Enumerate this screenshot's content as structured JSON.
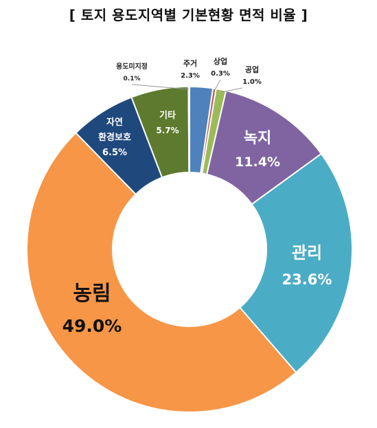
{
  "chart_data": {
    "type": "pie",
    "title": "[ 토지 용도지역별 기본현황 면적 비율 ]",
    "categories": [
      "주거",
      "상업",
      "공업",
      "녹지",
      "관리",
      "농림",
      "자연환경보호",
      "기타",
      "용도미지정"
    ],
    "values": [
      2.3,
      0.3,
      1.0,
      11.4,
      23.6,
      49.0,
      6.5,
      5.7,
      0.1
    ],
    "value_labels": [
      "2.3%",
      "0.3%",
      "1.0%",
      "11.4%",
      "23.6%",
      "49.0%",
      "6.5%",
      "5.7%",
      "0.1%"
    ],
    "colors": [
      "#4F81BD",
      "#C0504D",
      "#9BBB59",
      "#8064A2",
      "#4BACC6",
      "#F79646",
      "#1F497D",
      "#5E7A2E",
      "#A6A6A6"
    ],
    "style": "donut",
    "legend": "none"
  }
}
